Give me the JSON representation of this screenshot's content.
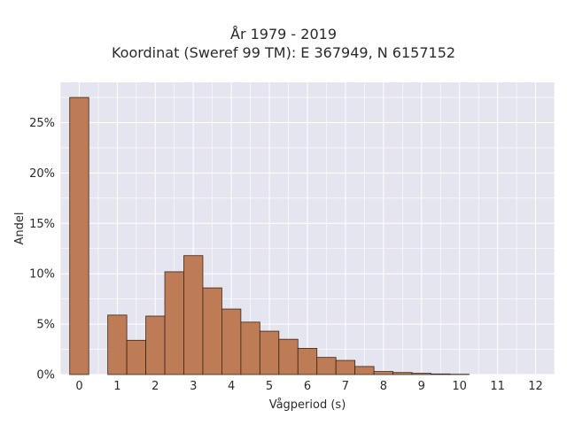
{
  "chart_data": {
    "type": "bar",
    "title_line1": "År 1979 - 2019",
    "title_line2": "Koordinat (Sweref 99 TM): E 367949, N 6157152",
    "xlabel": "Vågperiod (s)",
    "ylabel": "Andel",
    "xlim": [
      -0.5,
      12.5
    ],
    "ylim": [
      0,
      0.29
    ],
    "x_ticks": [
      0,
      1,
      2,
      3,
      4,
      5,
      6,
      7,
      8,
      9,
      10,
      11,
      12
    ],
    "y_ticks": [
      {
        "value": 0,
        "label": "0%"
      },
      {
        "value": 0.05,
        "label": "5%"
      },
      {
        "value": 0.1,
        "label": "10%"
      },
      {
        "value": 0.15,
        "label": "15%"
      },
      {
        "value": 0.2,
        "label": "20%"
      },
      {
        "value": 0.25,
        "label": "25%"
      }
    ],
    "grid": true,
    "bin_width": 0.5,
    "bins": [
      {
        "x0": 0.0,
        "value": 0.275
      },
      {
        "x0": 1.0,
        "value": 0.059
      },
      {
        "x0": 1.5,
        "value": 0.034
      },
      {
        "x0": 2.0,
        "value": 0.058
      },
      {
        "x0": 2.5,
        "value": 0.102
      },
      {
        "x0": 3.0,
        "value": 0.118
      },
      {
        "x0": 3.5,
        "value": 0.086
      },
      {
        "x0": 4.0,
        "value": 0.065
      },
      {
        "x0": 4.5,
        "value": 0.052
      },
      {
        "x0": 5.0,
        "value": 0.043
      },
      {
        "x0": 5.5,
        "value": 0.035
      },
      {
        "x0": 6.0,
        "value": 0.026
      },
      {
        "x0": 6.5,
        "value": 0.017
      },
      {
        "x0": 7.0,
        "value": 0.014
      },
      {
        "x0": 7.5,
        "value": 0.008
      },
      {
        "x0": 8.0,
        "value": 0.003
      },
      {
        "x0": 8.5,
        "value": 0.002
      },
      {
        "x0": 9.0,
        "value": 0.0012
      },
      {
        "x0": 9.5,
        "value": 0.0006
      },
      {
        "x0": 10.0,
        "value": 0.0003
      }
    ],
    "colors": {
      "bar_fill": "#bd7b56",
      "bar_edge": "#3d2417",
      "plot_background": "#e5e5ef",
      "grid": "#ffffff"
    }
  }
}
